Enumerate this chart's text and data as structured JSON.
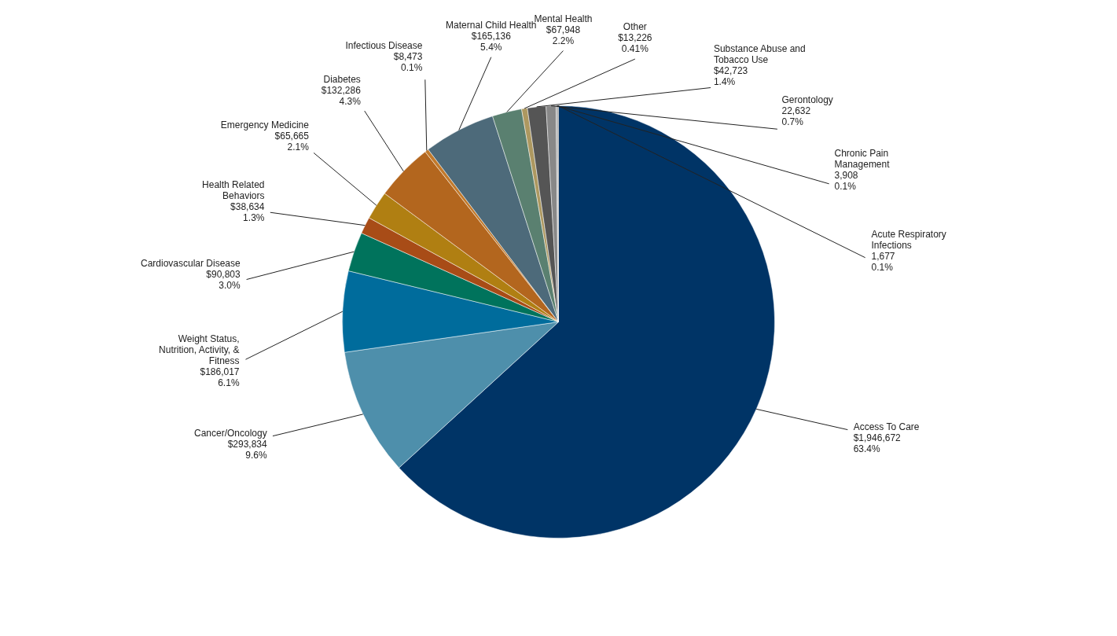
{
  "chart_data": {
    "type": "pie",
    "categories": [
      "Access To Care",
      "Cancer/Oncology",
      "Weight Status, Nutrition, Activity, & Fitness",
      "Cardiovascular Disease",
      "Health Related Behaviors",
      "Emergency Medicine",
      "Diabetes",
      "Infectious Disease",
      "Maternal Child Health",
      "Mental Health",
      "Other",
      "Substance Abuse and Tobacco Use",
      "Gerontology",
      "Chronic Pain Management",
      "Acute Respiratory Infections"
    ],
    "values": [
      1946672,
      293834,
      186017,
      90803,
      38634,
      65665,
      132286,
      8473,
      165136,
      67948,
      13226,
      42723,
      22632,
      3908,
      1677
    ],
    "value_labels": [
      "$1,946,672\n63.4%",
      "$293,834\n9.6%",
      "$186,017\n6.1%",
      "$90,803\n3.0%",
      "$38,634\n1.3%",
      "$65,665\n2.1%",
      "$132,286\n4.3%",
      "$8,473\n0.1%",
      "$165,136\n5.4%",
      "$67,948\n2.2%",
      "$13,226\n0.41%",
      "$42,723\n1.4%",
      "22,632\n0.7%",
      "3,908\n0.1%",
      "1,677\n0.1%"
    ],
    "colors": [
      "#003466",
      "#4e8fab",
      "#006c9c",
      "#00735c",
      "#a84c17",
      "#b07f12",
      "#b3661e",
      "#c27a2c",
      "#4d6a7a",
      "#5a8070",
      "#ad9860",
      "#555555",
      "#888888",
      "#aaaaaa",
      "#1a1a1a"
    ]
  }
}
